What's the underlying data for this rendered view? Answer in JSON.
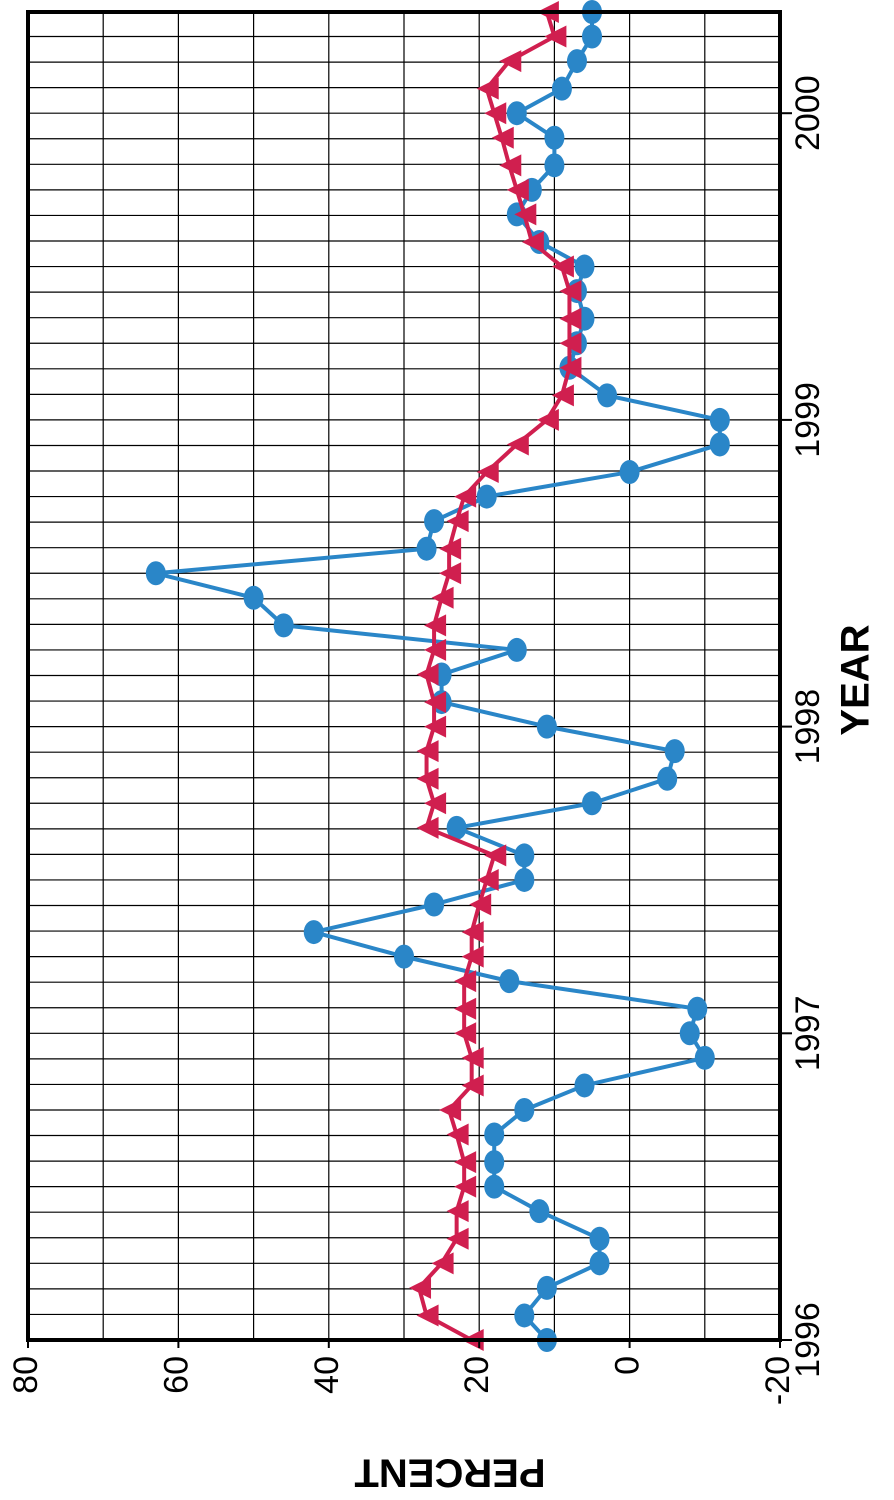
{
  "chart_data": {
    "type": "line",
    "orientation": "rotated-90-clockwise",
    "xlabel": "YEAR",
    "ylabel": "PERCENT",
    "xlim": [
      1996.0,
      2000.33
    ],
    "ylim": [
      -20,
      80
    ],
    "x_ticks": [
      "1996",
      "1997",
      "1998",
      "1999",
      "2000"
    ],
    "y_ticks": [
      "80",
      "60",
      "40",
      "20",
      "0",
      "-20"
    ],
    "grid": true,
    "legend": "none",
    "series": [
      {
        "color": "#2a86c8",
        "marker": "circle",
        "x": [
          1996.0,
          1996.08,
          1996.17,
          1996.25,
          1996.33,
          1996.42,
          1996.5,
          1996.58,
          1996.67,
          1996.75,
          1996.83,
          1996.92,
          1997.0,
          1997.08,
          1997.17,
          1997.25,
          1997.33,
          1997.42,
          1997.5,
          1997.58,
          1997.67,
          1997.75,
          1997.83,
          1997.92,
          1998.0,
          1998.08,
          1998.17,
          1998.25,
          1998.33,
          1998.42,
          1998.5,
          1998.58,
          1998.67,
          1998.75,
          1998.83,
          1998.92,
          1999.0,
          1999.08,
          1999.17,
          1999.25,
          1999.33,
          1999.42,
          1999.5,
          1999.58,
          1999.67,
          1999.75,
          1999.83,
          1999.92,
          2000.0,
          2000.08,
          2000.17,
          2000.25,
          2000.33
        ],
        "y": [
          11,
          14,
          11,
          4,
          4,
          12,
          18,
          18,
          18,
          14,
          6,
          -10,
          -8,
          -9,
          16,
          30,
          42,
          26,
          14,
          14,
          23,
          5,
          -5,
          -6,
          11,
          25,
          25,
          15,
          46,
          50,
          63,
          27,
          26,
          19,
          0,
          -12,
          -12,
          3,
          8,
          7,
          6,
          7,
          6,
          12,
          15,
          13,
          10,
          10,
          15,
          9,
          7,
          5,
          5
        ]
      },
      {
        "color": "#d01f4f",
        "marker": "triangle",
        "x": [
          1996.0,
          1996.08,
          1996.17,
          1996.25,
          1996.33,
          1996.42,
          1996.5,
          1996.58,
          1996.67,
          1996.75,
          1996.83,
          1996.92,
          1997.0,
          1997.08,
          1997.17,
          1997.25,
          1997.33,
          1997.42,
          1997.5,
          1997.58,
          1997.67,
          1997.75,
          1997.83,
          1997.92,
          1998.0,
          1998.08,
          1998.17,
          1998.25,
          1998.33,
          1998.42,
          1998.5,
          1998.58,
          1998.67,
          1998.75,
          1998.83,
          1998.92,
          1999.0,
          1999.08,
          1999.17,
          1999.25,
          1999.33,
          1999.42,
          1999.5,
          1999.58,
          1999.67,
          1999.75,
          1999.83,
          1999.92,
          2000.0,
          2000.08,
          2000.17,
          2000.25,
          2000.33
        ],
        "y": [
          21,
          27,
          28,
          25,
          23,
          23,
          22,
          22,
          23,
          24,
          21,
          21,
          22,
          22,
          22,
          21,
          21,
          20,
          19,
          18,
          27,
          26,
          27,
          27,
          26,
          26,
          27,
          26,
          26,
          25,
          24,
          24,
          23,
          22,
          19,
          15,
          11,
          9,
          8,
          8,
          8,
          8,
          9,
          13,
          14,
          15,
          16,
          17,
          18,
          19,
          16,
          10,
          11
        ]
      }
    ]
  }
}
